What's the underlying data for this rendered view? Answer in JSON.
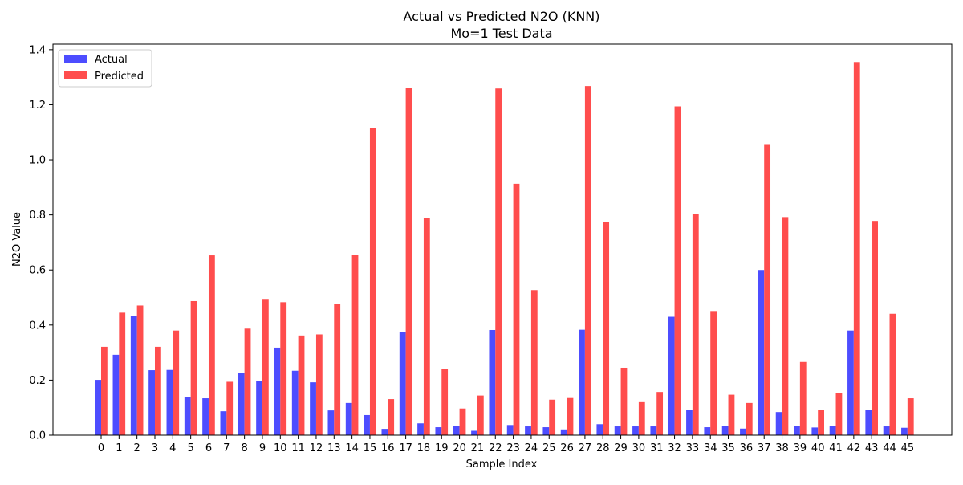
{
  "chart_data": {
    "type": "bar",
    "title": "Actual vs Predicted N2O (KNN)",
    "subtitle": "Mo=1 Test Data",
    "xlabel": "Sample Index",
    "ylabel": "N2O Value",
    "ylim": [
      0,
      1.42
    ],
    "yticks": [
      "0.0",
      "0.2",
      "0.4",
      "0.6",
      "0.8",
      "1.0",
      "1.2",
      "1.4"
    ],
    "grid": false,
    "legend_position": "top-left",
    "categories": [
      "0",
      "1",
      "2",
      "3",
      "4",
      "5",
      "6",
      "7",
      "8",
      "9",
      "10",
      "11",
      "12",
      "13",
      "14",
      "15",
      "16",
      "17",
      "18",
      "19",
      "20",
      "21",
      "22",
      "23",
      "24",
      "25",
      "26",
      "27",
      "28",
      "29",
      "30",
      "31",
      "32",
      "33",
      "34",
      "35",
      "36",
      "37",
      "38",
      "39",
      "40",
      "41",
      "42",
      "43",
      "44",
      "45"
    ],
    "series": [
      {
        "name": "Actual",
        "color": "#4d4dff",
        "values": [
          0.201,
          0.292,
          0.434,
          0.236,
          0.237,
          0.137,
          0.134,
          0.087,
          0.225,
          0.198,
          0.318,
          0.234,
          0.192,
          0.09,
          0.117,
          0.073,
          0.023,
          0.374,
          0.043,
          0.029,
          0.033,
          0.016,
          0.382,
          0.037,
          0.032,
          0.029,
          0.021,
          0.383,
          0.04,
          0.032,
          0.032,
          0.032,
          0.43,
          0.093,
          0.029,
          0.034,
          0.024,
          0.6,
          0.084,
          0.034,
          0.028,
          0.034,
          0.38,
          0.093,
          0.032,
          0.027
        ]
      },
      {
        "name": "Predicted",
        "color": "#ff4d4d",
        "values": [
          0.321,
          0.445,
          0.471,
          0.321,
          0.38,
          0.487,
          0.653,
          0.194,
          0.387,
          0.495,
          0.483,
          0.362,
          0.366,
          0.478,
          0.655,
          1.114,
          0.131,
          1.262,
          0.79,
          0.242,
          0.097,
          0.144,
          1.259,
          0.913,
          0.527,
          0.129,
          0.135,
          1.268,
          0.773,
          0.245,
          0.12,
          0.157,
          1.194,
          0.804,
          0.451,
          0.147,
          0.117,
          1.057,
          0.792,
          0.266,
          0.093,
          0.152,
          1.355,
          0.778,
          0.441,
          0.134
        ]
      }
    ]
  }
}
